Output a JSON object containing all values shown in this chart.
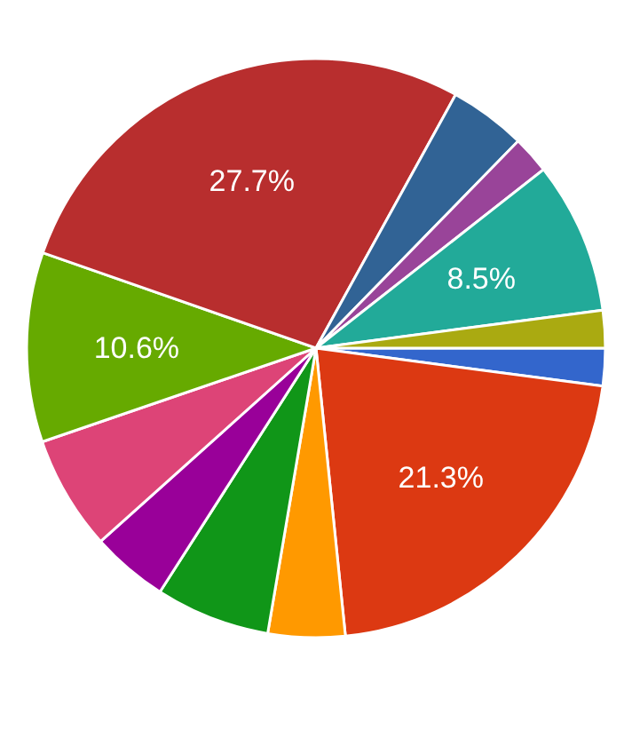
{
  "chart_data": {
    "type": "pie",
    "categories": [
      null,
      null,
      null,
      null,
      null,
      null,
      null,
      null,
      null,
      null,
      null,
      null
    ],
    "values": [
      2.1,
      21.3,
      4.3,
      6.4,
      4.3,
      6.4,
      10.6,
      27.7,
      4.3,
      2.1,
      8.5,
      2.1
    ],
    "colors": [
      "#3366cc",
      "#dc3912",
      "#ff9900",
      "#109618",
      "#990099",
      "#dd4477",
      "#66aa00",
      "#b82e2e",
      "#316395",
      "#994499",
      "#22aa99",
      "#aaaa11"
    ],
    "value_labels": [
      null,
      "21.3%",
      null,
      null,
      null,
      null,
      "10.6%",
      "27.7%",
      null,
      null,
      "8.5%",
      null
    ]
  }
}
